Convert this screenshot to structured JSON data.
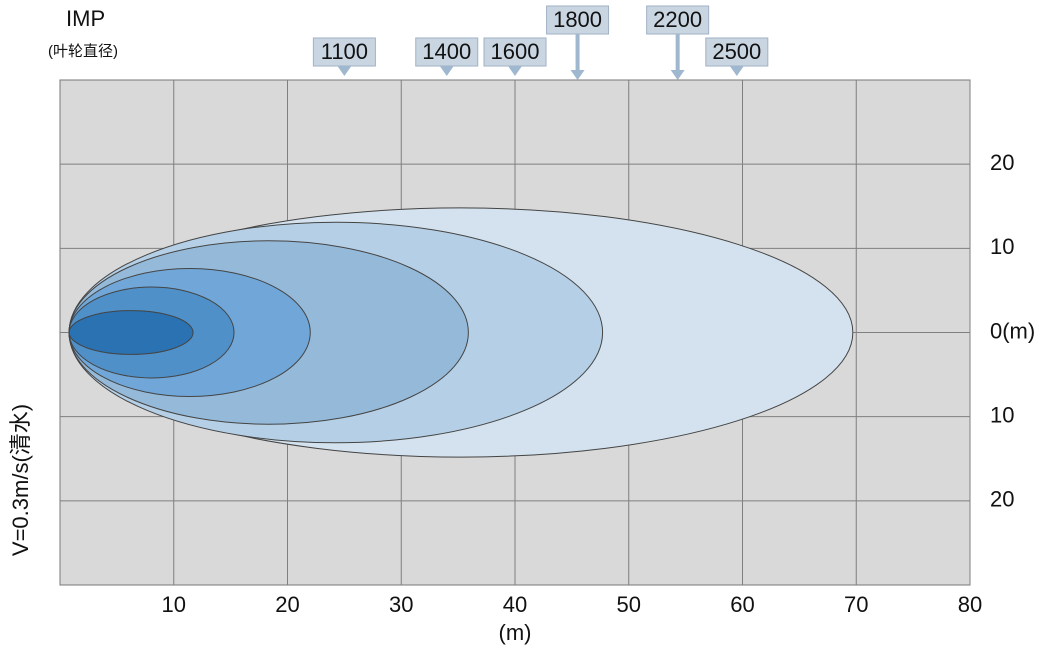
{
  "chart_data": {
    "type": "ellipse",
    "title": "IMP",
    "subtitle": "(叶轮直径)",
    "y_label": "V=0.3m/s(清水)",
    "x_label": "(m)",
    "xlim": [
      0,
      80
    ],
    "xticks": [
      10,
      20,
      30,
      40,
      50,
      60,
      70,
      80
    ],
    "ylim": [
      -30,
      30
    ],
    "yticks": [
      {
        "value": -20,
        "label": "20"
      },
      {
        "value": -10,
        "label": "10"
      },
      {
        "value": 0,
        "label": "0(m)"
      },
      10,
      20
    ],
    "grid": true,
    "series": [
      {
        "name": "1100",
        "color": "#2a72b2",
        "x_start": 0.8,
        "x_end": 11.7,
        "half_width": 2.6,
        "label_x": 25
      },
      {
        "name": "1400",
        "color": "#4f90c9",
        "x_start": 0.8,
        "x_end": 15.3,
        "half_width": 5.4,
        "label_x": 34
      },
      {
        "name": "1600",
        "color": "#70a7d8",
        "x_start": 0.8,
        "x_end": 22,
        "half_width": 7.6,
        "label_x": 40
      },
      {
        "name": "1800",
        "color": "#95bad9",
        "x_start": 0.8,
        "x_end": 35.9,
        "half_width": 10.9,
        "label_x": 45.5
      },
      {
        "name": "2200",
        "color": "#b5d0e6",
        "x_start": 0.8,
        "x_end": 47.7,
        "half_width": 13.1,
        "label_x": 54.3
      },
      {
        "name": "2500",
        "color": "#d3e2ee",
        "x_start": 0.8,
        "x_end": 69.7,
        "half_width": 14.8,
        "label_x": 59.5
      }
    ]
  }
}
